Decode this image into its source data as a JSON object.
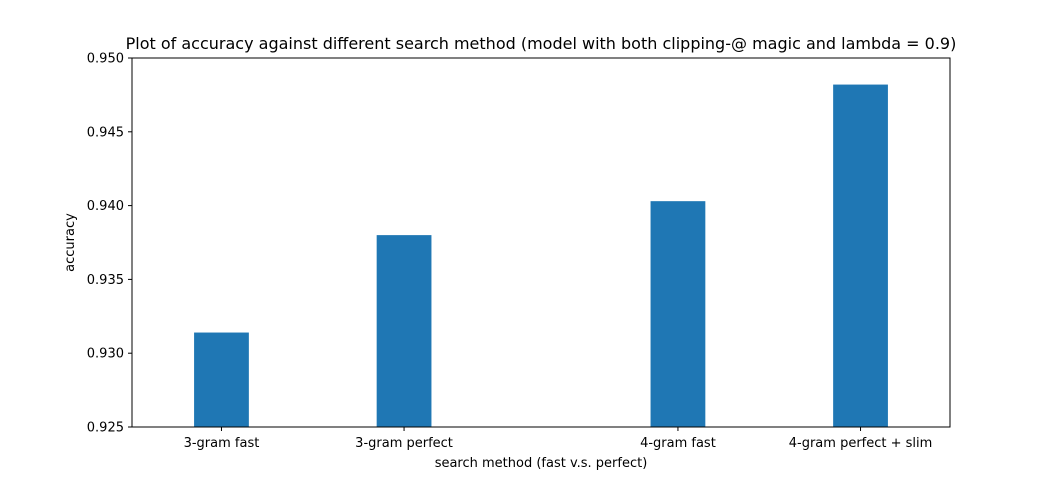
{
  "chart_data": {
    "type": "bar",
    "title": "Plot of accuracy against different search method (model with both clipping-@ magic and lambda = 0.9)",
    "xlabel": "search method (fast v.s. perfect)",
    "ylabel": "accuracy",
    "categories": [
      "3-gram fast",
      "3-gram perfect",
      "4-gram fast",
      "4-gram perfect + slim"
    ],
    "x": [
      0,
      1,
      2.5,
      3.5
    ],
    "values": [
      0.9314,
      0.938,
      0.9403,
      0.9482
    ],
    "ylim": [
      0.925,
      0.95
    ],
    "yticks": [
      "0.925",
      "0.930",
      "0.935",
      "0.940",
      "0.945",
      "0.950"
    ],
    "grid": false,
    "bar_color": "#1f77b4"
  }
}
